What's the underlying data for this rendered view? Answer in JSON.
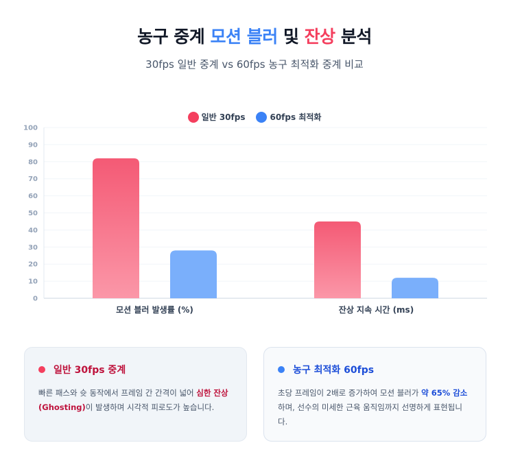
{
  "header": {
    "title_part1": "농구 중계",
    "title_part2": "모션 블러",
    "title_part3": "및",
    "title_part4": "잔상",
    "title_part5": "분석",
    "subtitle": "30fps 일반 중계 vs 60fps 농구 최적화 중계 비교"
  },
  "colors": {
    "series1": "#f43f5e",
    "series2": "#3b82f6",
    "series1_bar_top": "#f45a75",
    "series1_bar_bottom": "#fb97a8",
    "series2_bar": "#7aaffb"
  },
  "chart_data": {
    "type": "bar",
    "categories": [
      "모션 블러 발생률 (%)",
      "잔상 지속 시간 (ms)"
    ],
    "series": [
      {
        "name": "일반 30fps",
        "values": [
          82,
          45
        ]
      },
      {
        "name": "60fps 최적화",
        "values": [
          28,
          12
        ]
      }
    ],
    "ylim": [
      0,
      100
    ],
    "yticks": [
      0,
      10,
      20,
      30,
      40,
      50,
      60,
      70,
      80,
      90,
      100
    ],
    "grid": true,
    "legend": "top-center"
  },
  "cards": {
    "left": {
      "title": "일반 30fps 중계",
      "text_before": "빠른 패스와 슛 동작에서 프레임 간 간격이 넓어 ",
      "highlight": "심한 잔상 (Ghosting)",
      "text_after": "이 발생하며 시각적 피로도가 높습니다."
    },
    "right": {
      "title": "농구 최적화 60fps",
      "text_before": "초당 프레임이 2배로 증가하여 모션 블러가 ",
      "highlight": "약 65% 감소",
      "text_after": "하며, 선수의 미세한 근육 움직임까지 선명하게 표현됩니다."
    }
  }
}
